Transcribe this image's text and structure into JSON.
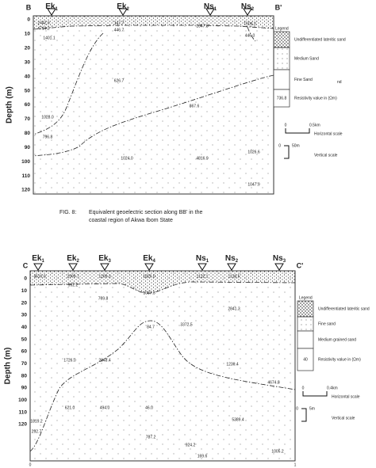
{
  "figure_top": {
    "corner_left": "B",
    "corner_right": "B'",
    "stations": [
      {
        "name": "Ek",
        "sub": "1"
      },
      {
        "name": "Ek",
        "sub": "2"
      },
      {
        "name": "Ns",
        "sub": "1"
      },
      {
        "name": "Ns",
        "sub": "2"
      }
    ],
    "axis_label": "Depth (m)",
    "depth_ticks": [
      0,
      10,
      20,
      30,
      40,
      50,
      60,
      70,
      80,
      90,
      100,
      110,
      120
    ],
    "resistivity_labels": [
      "2442.9",
      "4714.2",
      "147.7",
      "446.7",
      "1047.8",
      "1604.3",
      "446.0",
      "1401.1",
      "626.7",
      "867.6",
      "1028.0",
      "796.8",
      "1024.0",
      "4816.9",
      "1026.6",
      "1047.9"
    ],
    "legend": {
      "title": "Legend",
      "items": [
        "Undifferentiated lateritic sand",
        "Medium Sand",
        "Fine Sand",
        "Resistivity value in (Ωm)"
      ],
      "extra": "nd",
      "value_sample": "736.8"
    },
    "scale": {
      "h_zero": "0",
      "h_length": "0.5km",
      "h_label": "Horizontal scale",
      "v_zero": "0",
      "v_length": "50m",
      "v_label": "Vertical scale"
    }
  },
  "caption": {
    "label": "FIG. 8:",
    "lines": [
      "Equivalent geoelectric section along BB' in the",
      "coastal region of Akwa Ibom State"
    ]
  },
  "figure_bottom": {
    "corner_left": "C",
    "corner_right": "C'",
    "stations": [
      {
        "name": "Ek",
        "sub": "1"
      },
      {
        "name": "Ek",
        "sub": "2"
      },
      {
        "name": "Ek",
        "sub": "3"
      },
      {
        "name": "Ek",
        "sub": "4"
      },
      {
        "name": "Ns",
        "sub": "1"
      },
      {
        "name": "Ns",
        "sub": "2"
      },
      {
        "name": "Ns",
        "sub": "3"
      }
    ],
    "axis_label": "Depth (m)",
    "depth_ticks": [
      0,
      10,
      20,
      30,
      40,
      50,
      60,
      70,
      80,
      90,
      100,
      110,
      120
    ],
    "resistivity_labels": [
      "4516.0",
      "2909.7",
      "1209.3",
      "1826.0",
      "1122.1",
      "1136.5",
      "992.2",
      "1037.3",
      "769.8",
      "2841.3",
      "84.7",
      "3372.5",
      "1726.0",
      "2848.4",
      "1236.4",
      "4674.8",
      "621.0",
      "494.0",
      "46.0",
      "5389.4",
      "1819.2",
      "292.7",
      "787.2",
      "924.2",
      "169.6",
      "1005.2"
    ],
    "legend": {
      "title": "Legend",
      "items": [
        "Undifferentiated lateritic sand",
        "Fine sand",
        "Medium grained sand",
        "Resistivity value in (Ωm)"
      ],
      "value_sample": "40"
    },
    "scale": {
      "h_zero": "0",
      "h_length": "0.4km",
      "h_label": "Horizontal scale",
      "v_zero": "0",
      "v_length": "5m",
      "v_label": "Vertical scale"
    },
    "x_ends": [
      "0",
      "1"
    ]
  }
}
